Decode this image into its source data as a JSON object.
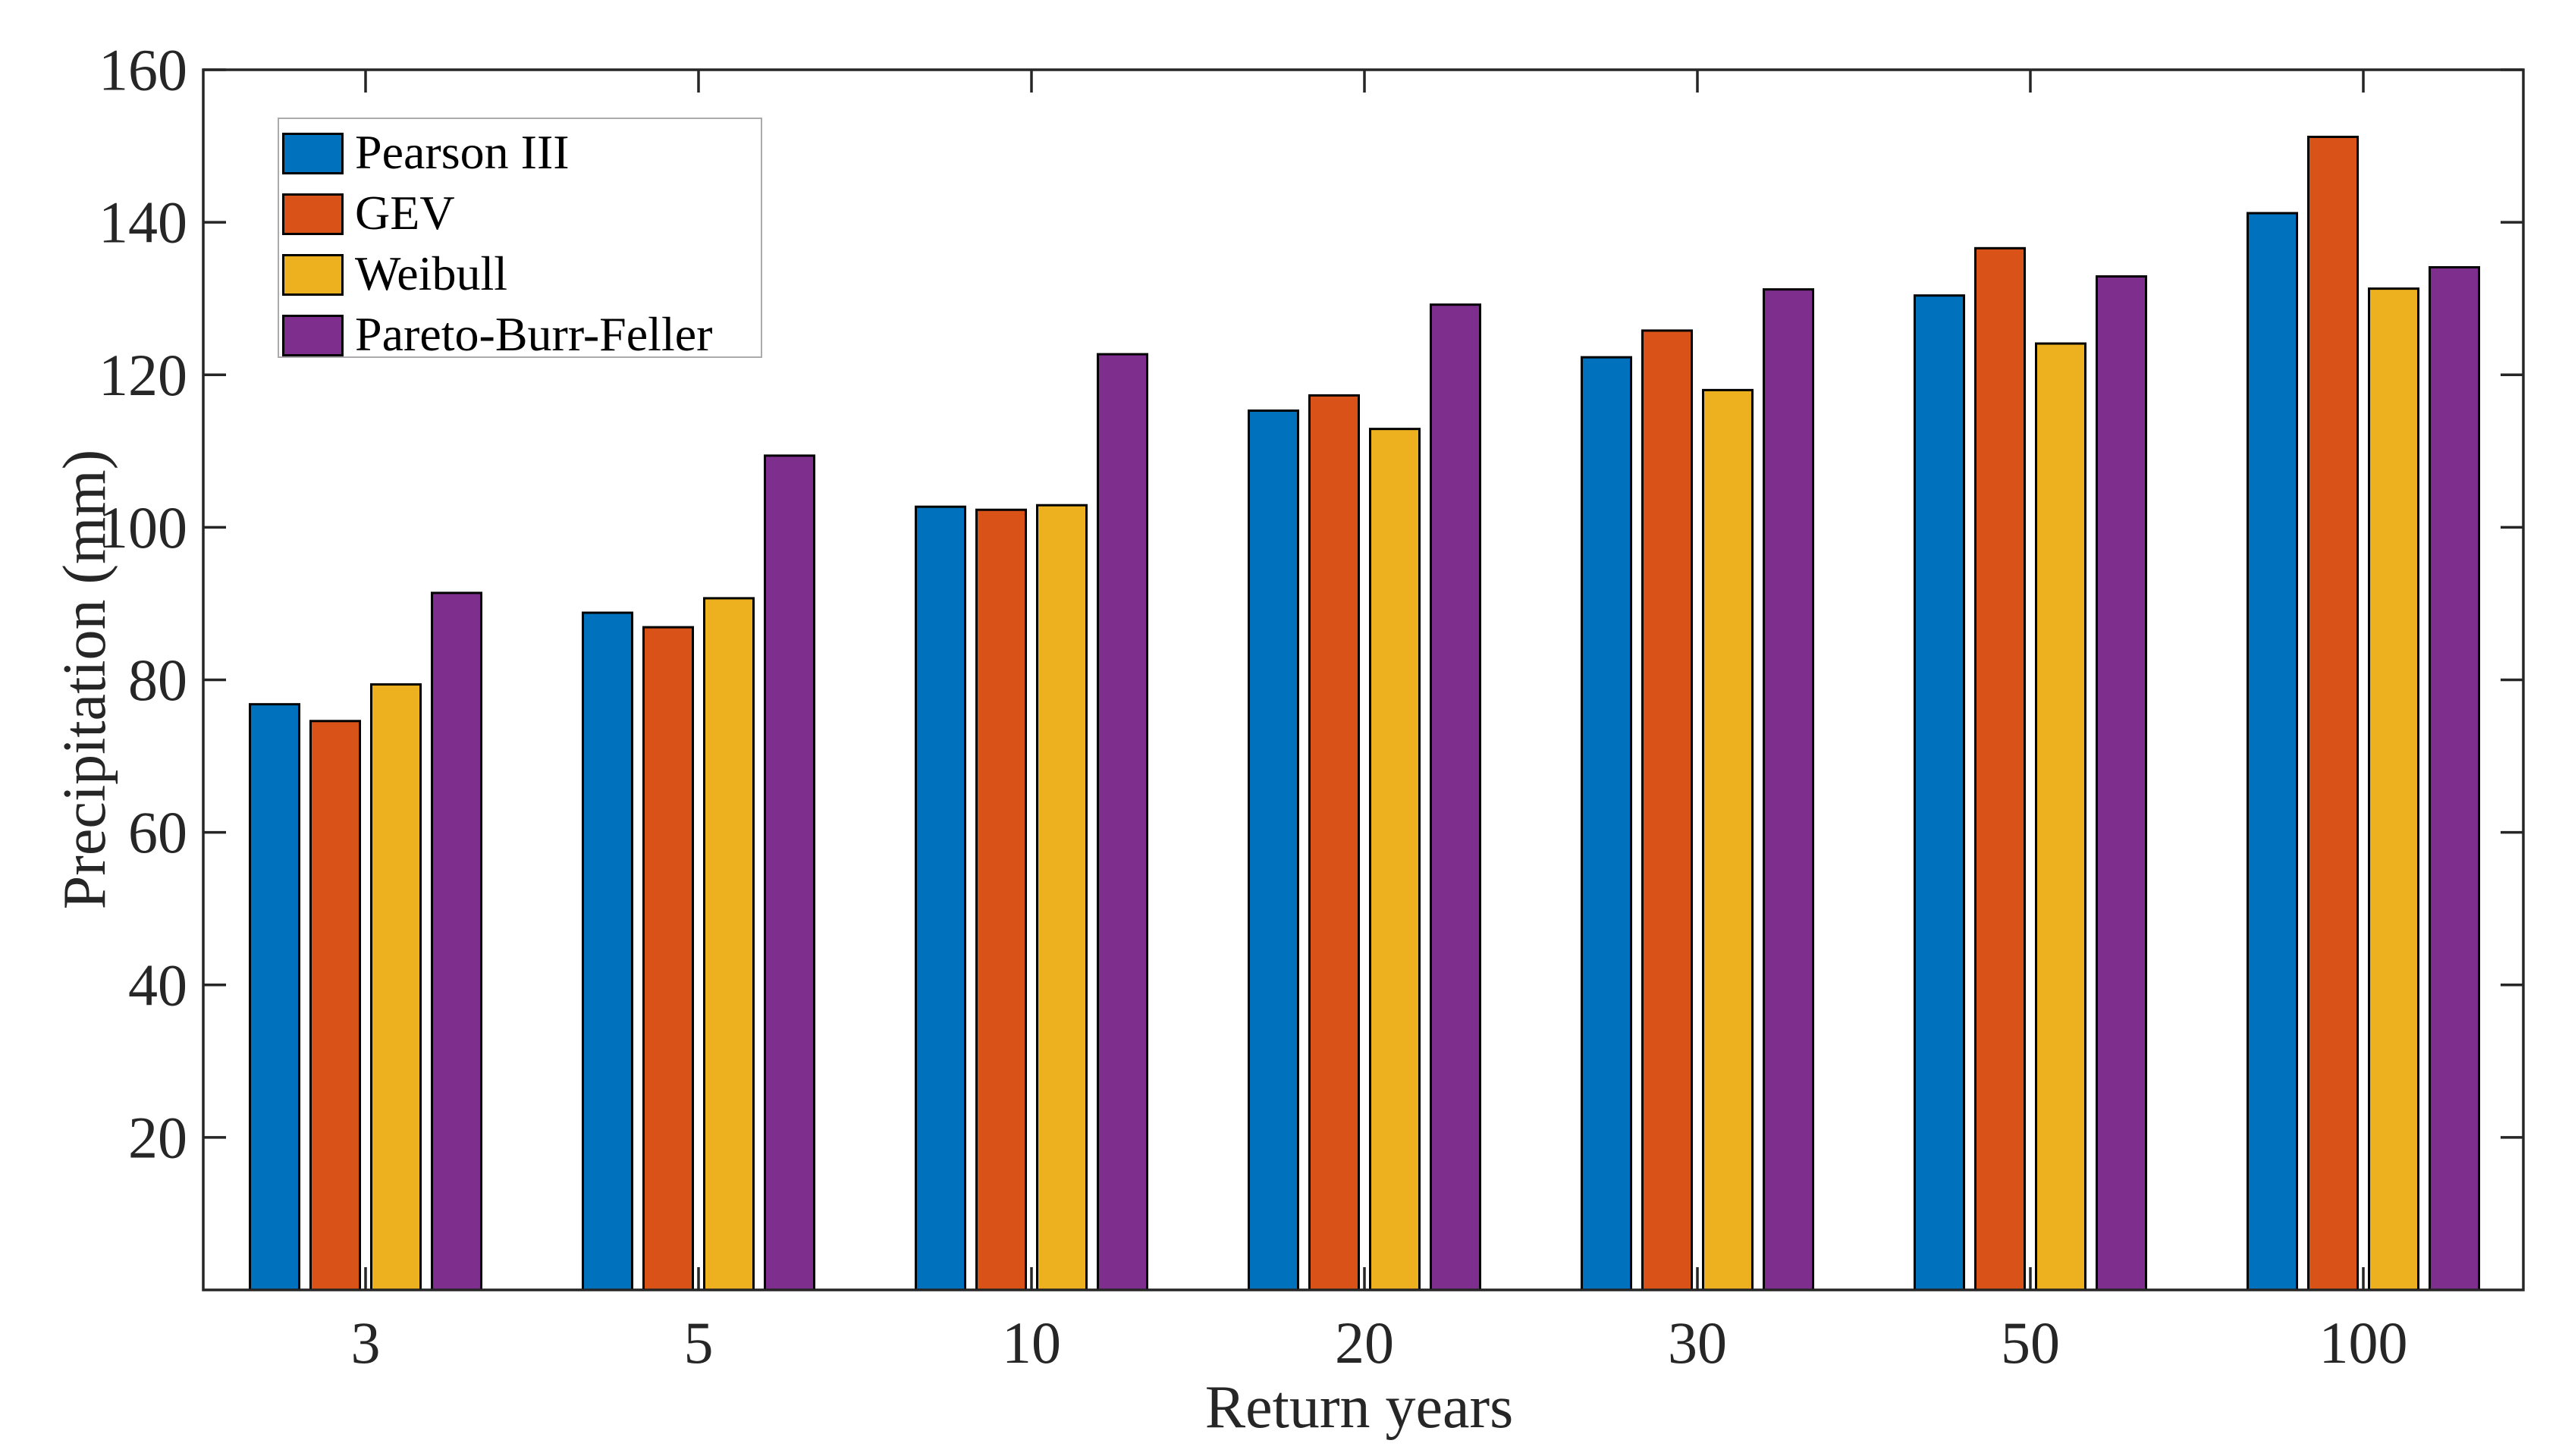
{
  "chart_data": {
    "type": "bar",
    "title": "",
    "xlabel": "Return years",
    "ylabel": "Precipitation (mm)",
    "categories": [
      "3",
      "5",
      "10",
      "20",
      "30",
      "50",
      "100"
    ],
    "series": [
      {
        "name": "Pearson III",
        "color": "#0072BD",
        "values": [
          76.8,
          88.8,
          102.7,
          115.3,
          122.3,
          130.4,
          141.2
        ]
      },
      {
        "name": "GEV",
        "color": "#D95319",
        "values": [
          74.6,
          86.9,
          102.3,
          117.3,
          125.8,
          136.6,
          151.2
        ]
      },
      {
        "name": "Weibull",
        "color": "#EDB120",
        "values": [
          79.4,
          90.7,
          102.9,
          112.9,
          118.0,
          124.1,
          131.3
        ]
      },
      {
        "name": "Pareto-Burr-Feller",
        "color": "#7E2F8E",
        "values": [
          91.4,
          109.4,
          122.7,
          129.2,
          131.2,
          132.9,
          134.1
        ]
      }
    ],
    "y_ticks": [
      20,
      40,
      60,
      80,
      100,
      120,
      140,
      160
    ],
    "ylim": [
      0,
      160
    ],
    "grid": false,
    "legend_position": "top-left",
    "bar_edge_color": "#000000",
    "axis_color": "#262626",
    "legend_edge_color": "#ababab"
  }
}
